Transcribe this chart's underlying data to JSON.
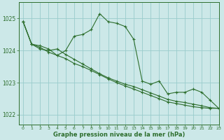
{
  "title": "Graphe pression niveau de la mer (hPa)",
  "bg_color": "#cce8e8",
  "grid_color": "#99cccc",
  "line_color": "#2d6e2d",
  "marker_color": "#2d6e2d",
  "xlim": [
    -0.5,
    23
  ],
  "ylim": [
    1021.7,
    1025.5
  ],
  "yticks": [
    1022,
    1023,
    1024,
    1025
  ],
  "xticks": [
    0,
    1,
    2,
    3,
    4,
    5,
    6,
    7,
    8,
    9,
    10,
    11,
    12,
    13,
    14,
    15,
    16,
    17,
    18,
    19,
    20,
    21,
    22,
    23
  ],
  "line1": [
    1024.9,
    1024.2,
    1024.15,
    1024.05,
    1023.85,
    1024.0,
    1024.45,
    1024.5,
    1024.65,
    1025.15,
    1024.9,
    1024.85,
    1024.75,
    1024.35,
    1023.05,
    1022.95,
    1023.05,
    1022.65,
    1022.7,
    1022.7,
    1022.8,
    1022.7,
    1022.45,
    1022.2
  ],
  "line2": [
    1024.9,
    1024.2,
    1024.1,
    1023.95,
    1023.85,
    1023.75,
    1023.6,
    1023.5,
    1023.38,
    1023.25,
    1023.12,
    1023.0,
    1022.9,
    1022.8,
    1022.7,
    1022.6,
    1022.5,
    1022.4,
    1022.35,
    1022.3,
    1022.25,
    1022.22,
    1022.2,
    1022.2
  ],
  "line3": [
    1024.9,
    1024.2,
    1024.05,
    1024.0,
    1024.05,
    1023.88,
    1023.73,
    1023.58,
    1023.43,
    1023.28,
    1023.15,
    1023.05,
    1022.95,
    1022.88,
    1022.78,
    1022.68,
    1022.58,
    1022.48,
    1022.42,
    1022.38,
    1022.33,
    1022.28,
    1022.22,
    1022.2
  ]
}
